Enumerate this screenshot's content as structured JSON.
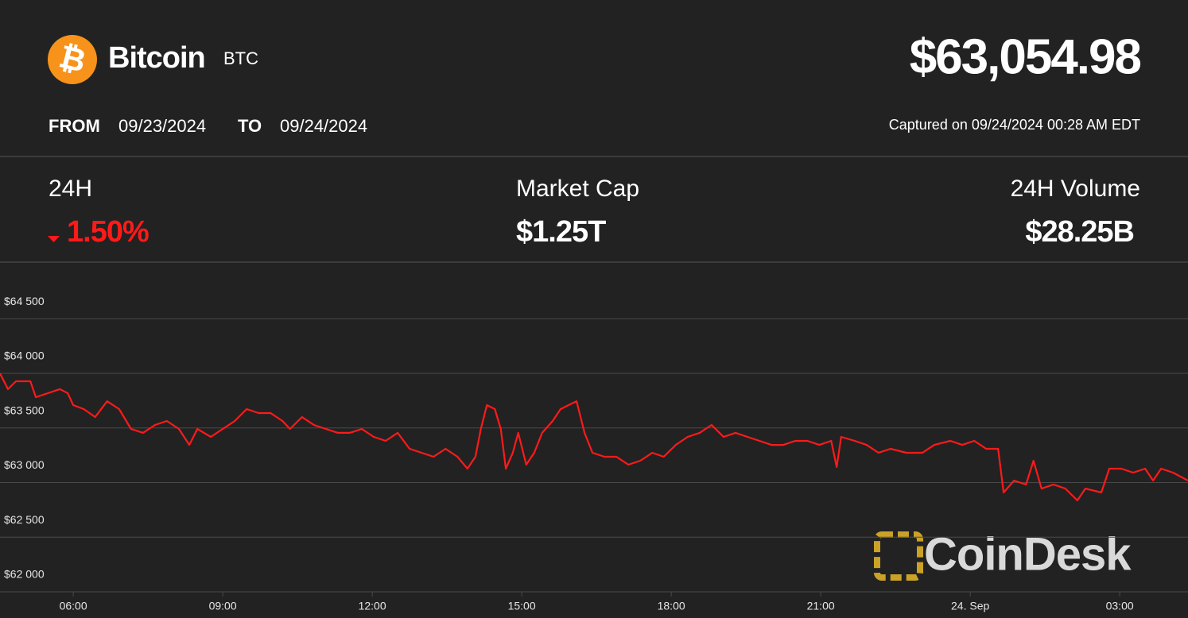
{
  "header": {
    "icon": "₿",
    "name": "Bitcoin",
    "symbol": "BTC",
    "price": "$63,054.98",
    "from_label": "FROM",
    "from_date": "09/23/2024",
    "to_label": "TO",
    "to_date": "09/24/2024",
    "captured": "Captured on 09/24/2024 00:28 AM EDT"
  },
  "stats": [
    {
      "label": "24H",
      "value": "1.50%"
    },
    {
      "label": "Market Cap",
      "value": "$1.25T"
    },
    {
      "label": "24H Volume",
      "value": "$28.25B"
    }
  ],
  "watermark": "CoinDesk",
  "chart_data": {
    "type": "line",
    "x": [
      4.53,
      4.69,
      4.85,
      5.14,
      5.25,
      5.49,
      5.73,
      5.89,
      6.0,
      6.21,
      6.44,
      6.68,
      6.92,
      7.16,
      7.4,
      7.64,
      7.88,
      8.12,
      8.33,
      8.49,
      8.76,
      9.0,
      9.24,
      9.48,
      9.72,
      9.96,
      10.2,
      10.35,
      10.59,
      10.83,
      11.07,
      11.31,
      11.55,
      11.79,
      12.03,
      12.27,
      12.51,
      12.75,
      12.99,
      13.23,
      13.47,
      13.71,
      13.91,
      14.07,
      14.18,
      14.3,
      14.46,
      14.58,
      14.68,
      14.82,
      14.93,
      15.09,
      15.25,
      15.41,
      15.62,
      15.78,
      15.94,
      16.1,
      16.26,
      16.42,
      16.66,
      16.9,
      17.14,
      17.38,
      17.62,
      17.85,
      18.09,
      18.33,
      18.57,
      18.81,
      19.05,
      19.29,
      19.53,
      19.77,
      20.01,
      20.25,
      20.49,
      20.73,
      20.97,
      21.21,
      21.32,
      21.41,
      21.68,
      21.92,
      22.16,
      22.4,
      22.72,
      23.04,
      23.28,
      23.6,
      23.84,
      24.08,
      24.32,
      24.56,
      24.67,
      24.88,
      25.12,
      25.27,
      25.43,
      25.67,
      25.91,
      26.15,
      26.31,
      26.63,
      26.79,
      27.03,
      27.27,
      27.51,
      27.67,
      27.83,
      28.07,
      28.37
    ],
    "series": [
      {
        "name": "BTC",
        "color": "#ff1a1a",
        "values": [
          64000,
          63855,
          63927,
          63927,
          63782,
          63818,
          63855,
          63818,
          63709,
          63673,
          63600,
          63745,
          63673,
          63491,
          63455,
          63527,
          63564,
          63491,
          63345,
          63491,
          63418,
          63491,
          63564,
          63673,
          63636,
          63636,
          63564,
          63491,
          63600,
          63527,
          63491,
          63455,
          63455,
          63491,
          63418,
          63382,
          63455,
          63309,
          63273,
          63236,
          63309,
          63236,
          63127,
          63236,
          63491,
          63709,
          63673,
          63491,
          63127,
          63273,
          63455,
          63164,
          63273,
          63455,
          63564,
          63673,
          63709,
          63745,
          63455,
          63273,
          63236,
          63236,
          63164,
          63200,
          63273,
          63236,
          63345,
          63418,
          63455,
          63527,
          63418,
          63455,
          63418,
          63382,
          63345,
          63345,
          63382,
          63382,
          63345,
          63382,
          63142,
          63418,
          63382,
          63345,
          63273,
          63309,
          63273,
          63273,
          63345,
          63382,
          63345,
          63382,
          63309,
          63309,
          62909,
          63018,
          62982,
          63200,
          62945,
          62982,
          62945,
          62836,
          62945,
          62909,
          63127,
          63127,
          63091,
          63127,
          63018,
          63127,
          63091,
          63018
        ]
      }
    ],
    "xlim": [
      4.53,
      28.37
    ],
    "xticks": [
      {
        "value": 6,
        "label": "06:00"
      },
      {
        "value": 9,
        "label": "09:00"
      },
      {
        "value": 12,
        "label": "12:00"
      },
      {
        "value": 15,
        "label": "15:00"
      },
      {
        "value": 18,
        "label": "18:00"
      },
      {
        "value": 21,
        "label": "21:00"
      },
      {
        "value": 24,
        "label": "24. Sep"
      },
      {
        "value": 27,
        "label": "03:00"
      }
    ],
    "ylim": [
      62000,
      65000
    ],
    "yticks": [
      {
        "value": 62000,
        "label": "$62 000"
      },
      {
        "value": 62500,
        "label": "$62 500"
      },
      {
        "value": 63000,
        "label": "$63 000"
      },
      {
        "value": 63500,
        "label": "$63 500"
      },
      {
        "value": 64000,
        "label": "$64 000"
      },
      {
        "value": 64500,
        "label": "$64 500"
      }
    ],
    "grid": true
  }
}
